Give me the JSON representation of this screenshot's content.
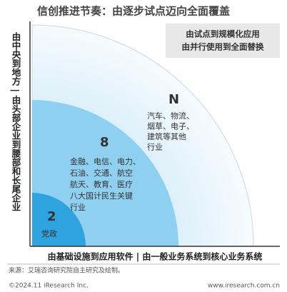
{
  "title": "信创推进节奏：由逐步试点迈向全面覆盖",
  "side_label": "由中央到地方 | 由头部企业到腰部和长尾企业",
  "top_note": [
    "由试点到规模化应用",
    "由并行使用到全面替换"
  ],
  "levels": [
    {
      "label": "N",
      "lines": [
        "汽车、物流、",
        "烟草、电子、",
        "建筑等其他",
        "行业"
      ]
    },
    {
      "label": "8",
      "lines": [
        "金融、电信、电力、",
        "石油、交通、航空",
        "航天、教育、医疗",
        "八大国计民生关键",
        "行业"
      ]
    },
    {
      "label": "2",
      "lines": [
        "党政"
      ]
    }
  ],
  "bottom_label": "由基础设施到应用软件 | 由一般业务系统到核心业务系统",
  "source": "来源：艾瑞咨询研究院自主研究及绘制。",
  "footer": {
    "left": "©2024.11 iResearch Inc.",
    "right": "www.iresearch.com.cn"
  }
}
